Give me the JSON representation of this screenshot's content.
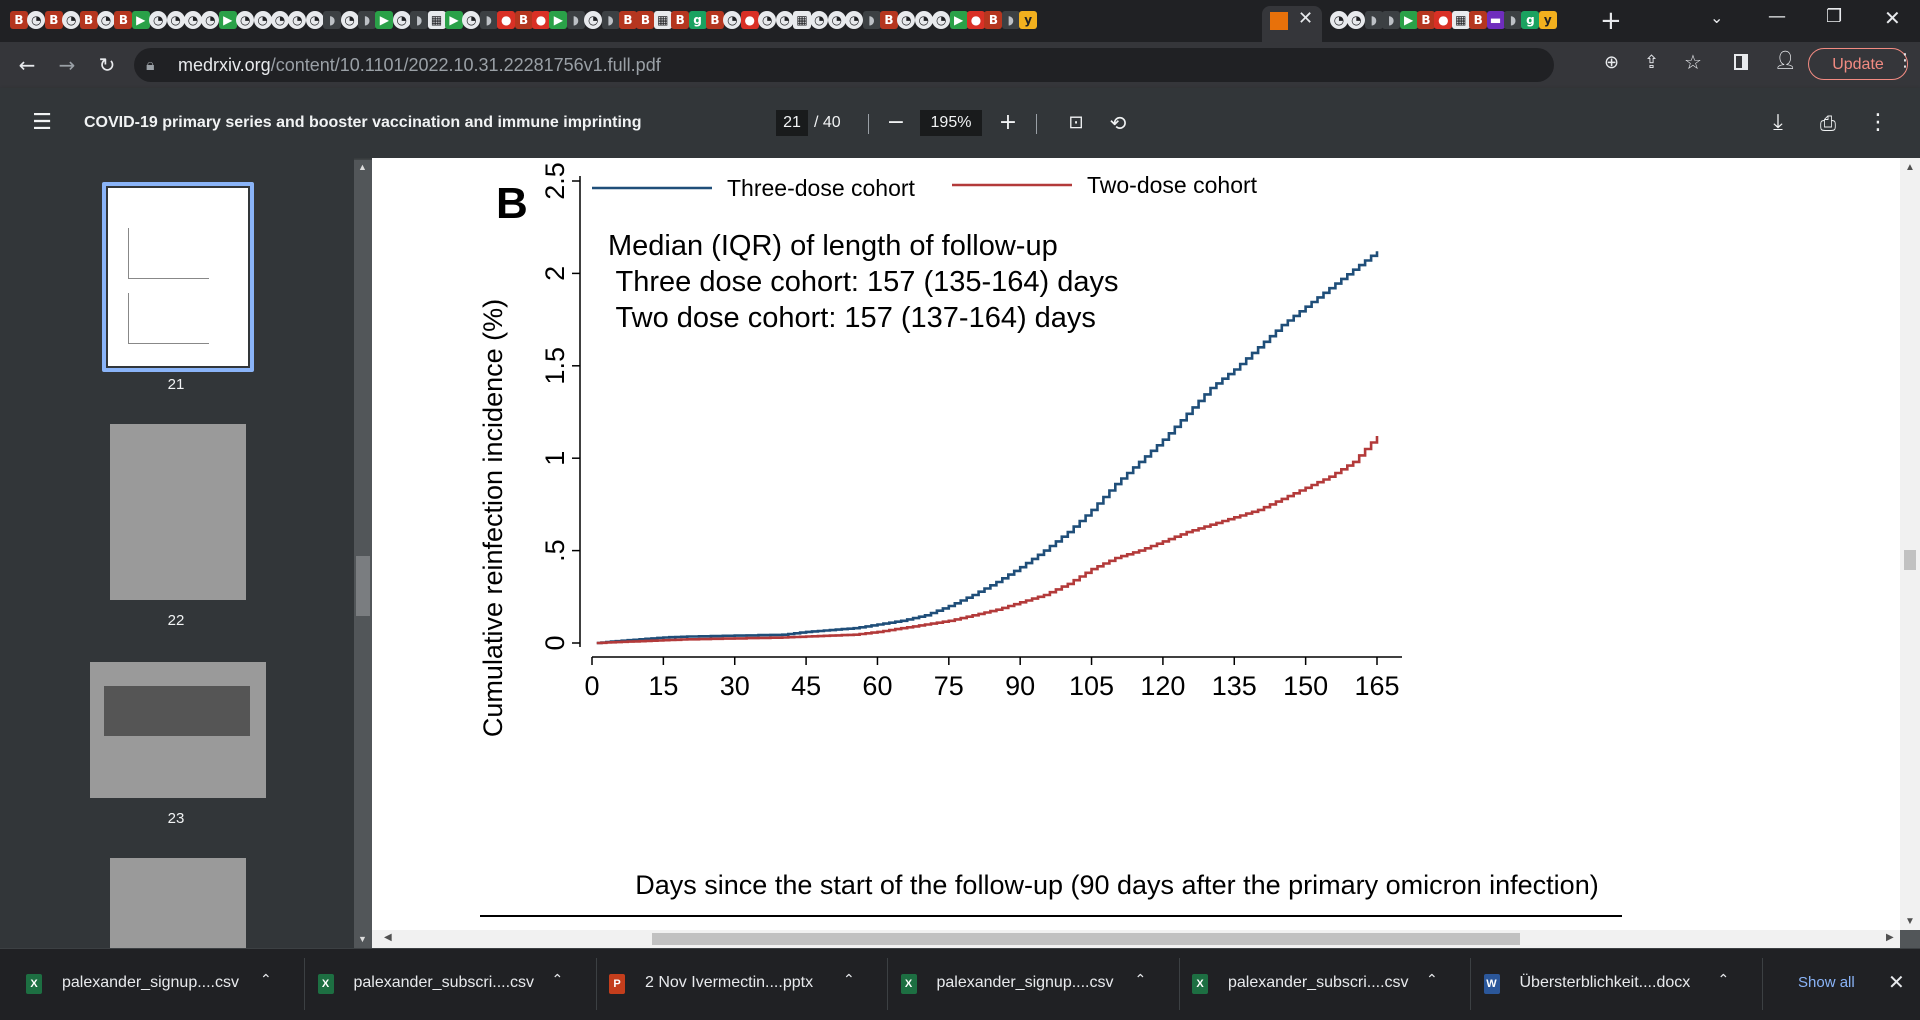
{
  "browser": {
    "address": {
      "domain": "medrxiv.org",
      "path": "/content/10.1101/2022.10.31.22281756v1.full.pdf"
    },
    "update_label": "Update",
    "tab_icons": [
      "b",
      "c",
      "b",
      "c",
      "b",
      "c",
      "b",
      "d",
      "c",
      "c",
      "c",
      "c",
      "d",
      "c",
      "c",
      "c",
      "c",
      "c",
      "s",
      "c",
      "s",
      "d",
      "c",
      "s",
      "w",
      "d",
      "c",
      "s",
      "r",
      "b",
      "r",
      "d",
      "s",
      "c",
      "s",
      "b",
      "b",
      "w",
      "b",
      "g",
      "b",
      "c",
      "r",
      "c",
      "c",
      "w",
      "c",
      "c",
      "c",
      "s",
      "b",
      "c",
      "c",
      "c",
      "d",
      "r",
      "b",
      "s",
      "y",
      "x",
      "c",
      "c",
      "s",
      "s",
      "d",
      "b",
      "r",
      "w",
      "b",
      "p",
      "s",
      "g",
      "y"
    ]
  },
  "pdf": {
    "title": "COVID-19 primary series and booster vaccination and immune imprinting",
    "current_page": "21",
    "total_pages": "/ 40",
    "zoom": "195%"
  },
  "sidebar": {
    "thumbnails": [
      {
        "label": "21",
        "selected": true
      },
      {
        "label": "22",
        "selected": false
      },
      {
        "label": "23",
        "selected": false
      },
      {
        "label": "",
        "selected": false
      }
    ]
  },
  "chart_data": {
    "type": "line",
    "panel_label": "B",
    "xlabel": "Days since the start of the follow-up (90 days after the primary omicron infection)",
    "ylabel": "Cumulative reinfection incidence (%)",
    "xlim": [
      0,
      165
    ],
    "ylim": [
      0,
      2.5
    ],
    "xticks": [
      0,
      15,
      30,
      45,
      60,
      75,
      90,
      105,
      120,
      135,
      150,
      165
    ],
    "yticks": [
      {
        "v": 0,
        "label": "0"
      },
      {
        "v": 0.5,
        "label": ".5"
      },
      {
        "v": 1,
        "label": "1"
      },
      {
        "v": 1.5,
        "label": "1.5"
      },
      {
        "v": 2,
        "label": "2"
      },
      {
        "v": 2.5,
        "label": "2.5"
      }
    ],
    "annotation": [
      "Median (IQR) of length of follow-up",
      " Three dose cohort: 157 (135-164) days",
      " Two dose cohort: 157 (137-164) days"
    ],
    "legend_position": "top",
    "series": [
      {
        "name": "Three-dose cohort",
        "color": "#1f4e79",
        "x": [
          1,
          5,
          10,
          15,
          20,
          30,
          40,
          45,
          50,
          55,
          60,
          65,
          70,
          75,
          80,
          85,
          90,
          95,
          100,
          105,
          110,
          115,
          120,
          125,
          130,
          135,
          140,
          145,
          150,
          155,
          160,
          165
        ],
        "y": [
          0,
          0.01,
          0.02,
          0.03,
          0.035,
          0.04,
          0.045,
          0.06,
          0.07,
          0.08,
          0.1,
          0.12,
          0.15,
          0.2,
          0.26,
          0.33,
          0.41,
          0.5,
          0.6,
          0.72,
          0.86,
          0.98,
          1.1,
          1.24,
          1.38,
          1.48,
          1.6,
          1.72,
          1.82,
          1.92,
          2.02,
          2.12
        ]
      },
      {
        "name": "Two-dose cohort",
        "color": "#b33a3a",
        "x": [
          1,
          5,
          10,
          15,
          20,
          30,
          40,
          45,
          50,
          55,
          60,
          65,
          70,
          75,
          80,
          85,
          90,
          95,
          100,
          105,
          110,
          115,
          120,
          125,
          130,
          135,
          140,
          145,
          150,
          155,
          160,
          165
        ],
        "y": [
          0,
          0.005,
          0.01,
          0.015,
          0.02,
          0.025,
          0.03,
          0.035,
          0.04,
          0.045,
          0.06,
          0.08,
          0.1,
          0.12,
          0.15,
          0.18,
          0.22,
          0.26,
          0.32,
          0.4,
          0.46,
          0.5,
          0.55,
          0.6,
          0.64,
          0.68,
          0.72,
          0.78,
          0.84,
          0.9,
          0.98,
          1.12
        ]
      }
    ]
  },
  "downloads": {
    "items": [
      {
        "name": "palexander_signup....csv",
        "icon": "excel-icon",
        "color": "#1d6f42"
      },
      {
        "name": "palexander_subscri....csv",
        "icon": "excel-icon",
        "color": "#1d6f42"
      },
      {
        "name": "2 Nov Ivermectin....pptx",
        "icon": "powerpoint-icon",
        "color": "#c43e1c"
      },
      {
        "name": "palexander_signup....csv",
        "icon": "excel-icon",
        "color": "#1d6f42"
      },
      {
        "name": "palexander_subscri....csv",
        "icon": "excel-icon",
        "color": "#1d6f42"
      },
      {
        "name": "Übersterblichkeit....docx",
        "icon": "word-icon",
        "color": "#2b579a"
      }
    ],
    "show_all": "Show all"
  }
}
